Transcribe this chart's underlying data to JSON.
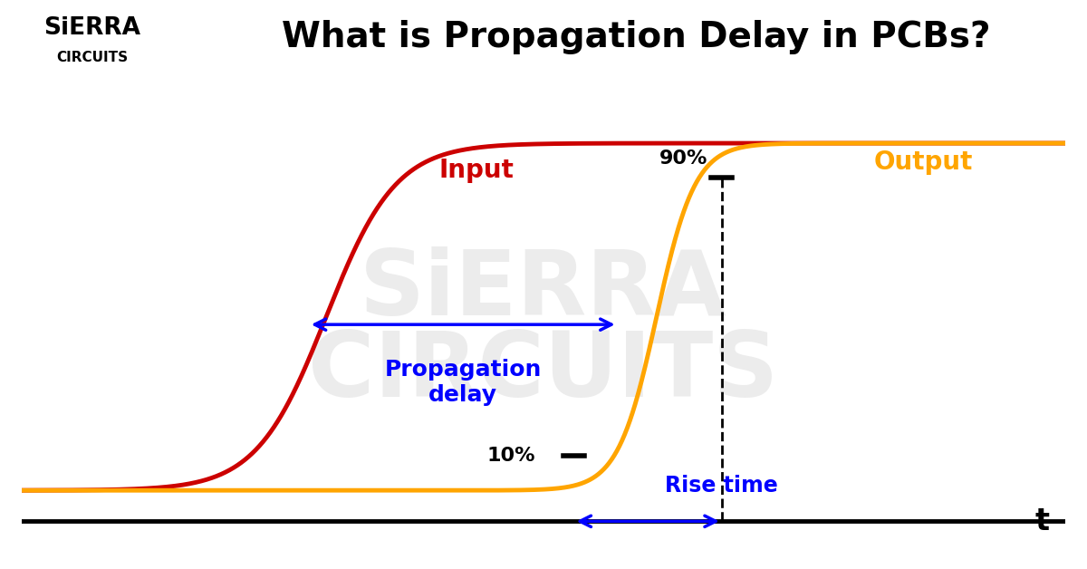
{
  "title": "What is Propagation Delay in PCBs?",
  "title_fontsize": 28,
  "title_color": "#000000",
  "header_bg_color": "#F5A800",
  "bg_color": "#FFFFFF",
  "input_color": "#CC0000",
  "output_color": "#FFA500",
  "baseline_color": "#000000",
  "arrow_color": "#0000FF",
  "label_10pct": "10%",
  "label_90pct": "90%",
  "label_input": "Input",
  "label_output": "Output",
  "label_prop_delay": "Propagation\ndelay",
  "label_rise_time": "Rise time",
  "label_t": "t",
  "low_level": 0.05,
  "high_level": 0.95,
  "xmax": 12.0,
  "ymax": 1.1
}
